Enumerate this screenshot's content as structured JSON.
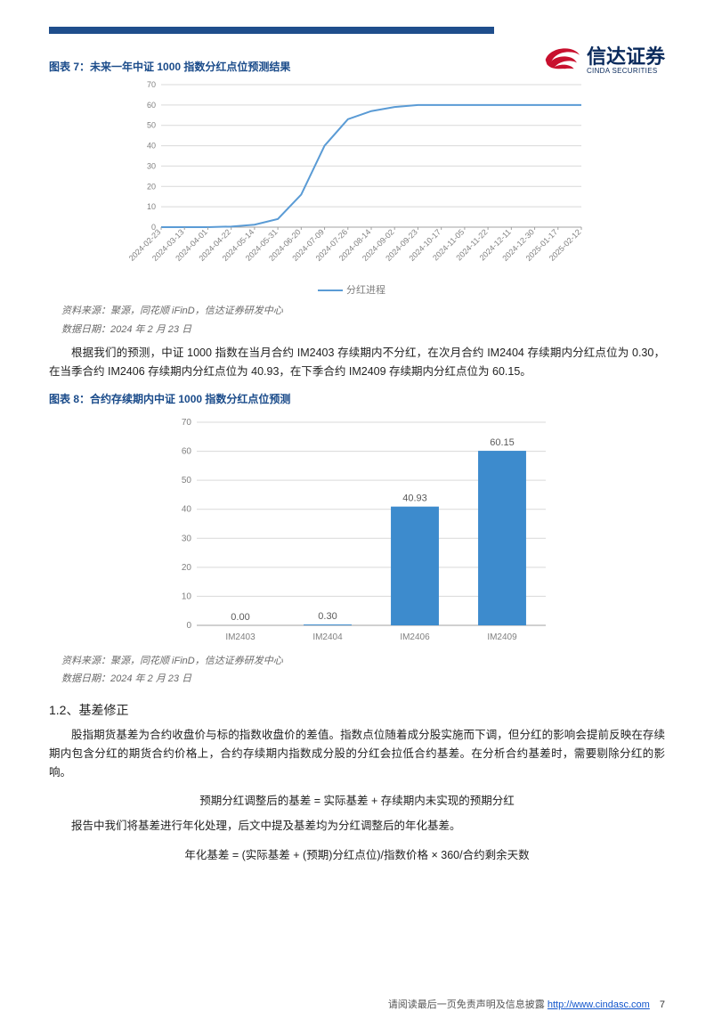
{
  "logo": {
    "cn": "信达证券",
    "en": "CINDA SECURITIES"
  },
  "fig7": {
    "title": "图表 7：未来一年中证 1000 指数分红点位预测结果",
    "type": "line",
    "series_name": "分红进程",
    "line_color": "#5a9bd5",
    "grid_color": "#d9d9d9",
    "axis_color": "#a0a0a0",
    "tick_color": "#808080",
    "tick_fontsize": 9,
    "ylim": [
      0,
      70
    ],
    "ytick_step": 10,
    "x_labels": [
      "2024-02-23",
      "2024-03-13",
      "2024-04-01",
      "2024-04-22",
      "2024-05-14",
      "2024-05-31",
      "2024-06-20",
      "2024-07-09",
      "2024-07-26",
      "2024-08-14",
      "2024-09-02",
      "2024-09-23",
      "2024-10-17",
      "2024-11-05",
      "2024-11-22",
      "2024-12-11",
      "2024-12-30",
      "2025-01-17",
      "2025-02-12"
    ],
    "y_values": [
      0,
      0,
      0,
      0.3,
      1.2,
      4,
      16,
      40,
      53,
      57,
      59,
      60,
      60,
      60,
      60,
      60,
      60,
      60,
      60
    ],
    "source": "资料来源：聚源，同花顺 iFinD，信达证券研发中心",
    "date_note": "数据日期：2024 年 2 月 23 日"
  },
  "para1": "根据我们的预测，中证 1000 指数在当月合约 IM2403 存续期内不分红，在次月合约 IM2404 存续期内分红点位为 0.30，在当季合约 IM2406 存续期内分红点位为 40.93，在下季合约 IM2409 存续期内分红点位为 60.15。",
  "fig8": {
    "title": "图表 8：合约存续期内中证 1000 指数分红点位预测",
    "type": "bar",
    "bar_color": "#3d8bcd",
    "grid_color": "#d9d9d9",
    "axis_color": "#a0a0a0",
    "tick_color": "#808080",
    "tick_fontsize": 10,
    "label_color": "#595959",
    "ylim": [
      0,
      70
    ],
    "ytick_step": 10,
    "categories": [
      "IM2403",
      "IM2404",
      "IM2406",
      "IM2409"
    ],
    "values": [
      0.0,
      0.3,
      40.93,
      60.15
    ],
    "value_labels": [
      "0.00",
      "0.30",
      "40.93",
      "60.15"
    ],
    "source": "资料来源：聚源，同花顺 iFinD，信达证券研发中心",
    "date_note": "数据日期：2024 年 2 月 23 日"
  },
  "section": "1.2、基差修正",
  "para2": "股指期货基差为合约收盘价与标的指数收盘价的差值。指数点位随着成分股实施而下调，但分红的影响会提前反映在存续期内包含分红的期货合约价格上，合约存续期内指数成分股的分红会拉低合约基差。在分析合约基差时，需要剔除分红的影响。",
  "formula1": "预期分红调整后的基差 = 实际基差 + 存续期内未实现的预期分红",
  "para3": "报告中我们将基差进行年化处理，后文中提及基差均为分红调整后的年化基差。",
  "formula2": "年化基差 = (实际基差 + (预期)分红点位)/指数价格 × 360/合约剩余天数",
  "footer": {
    "text": "请阅读最后一页免责声明及信息披露",
    "url_text": "http://www.cindasc.com",
    "page": "7"
  }
}
